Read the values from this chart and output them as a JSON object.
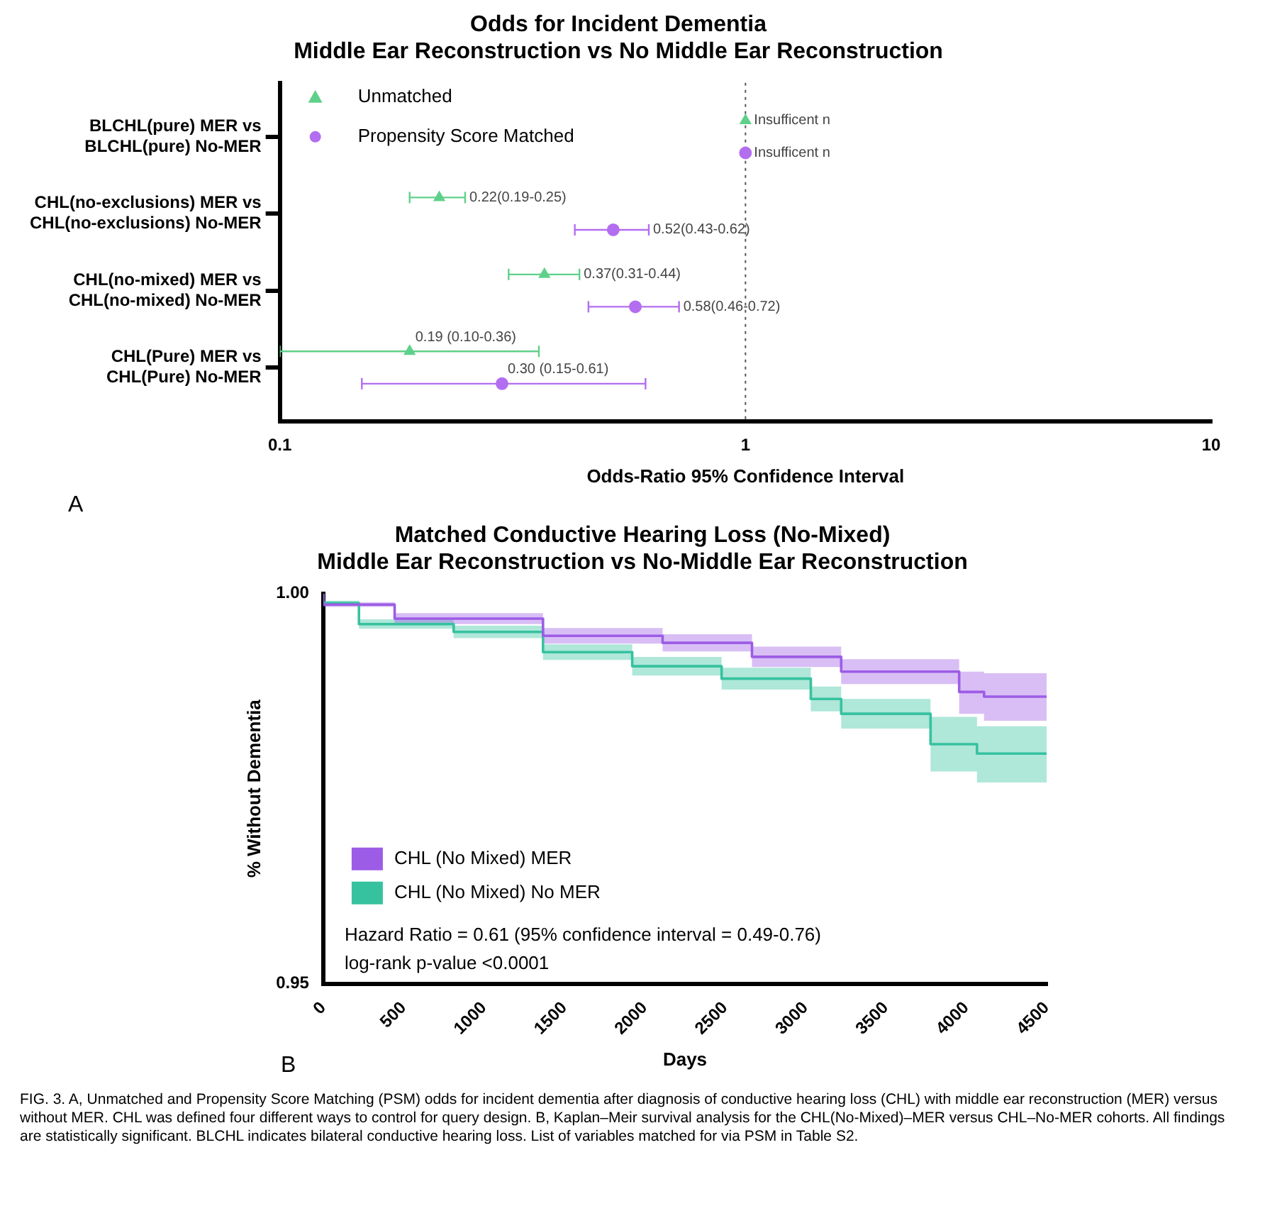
{
  "chart_data": [
    {
      "type": "scatter",
      "orientation": "horizontal",
      "title": "Odds for Incident Dementia",
      "subtitle": "Middle Ear Reconstruction vs No Middle Ear Reconstruction",
      "xlabel": "Odds-Ratio 95% Confidence Interval",
      "categories": [
        "BLCHL(pure) MER vs\nBLCHL(pure) No-MER",
        "CHL(no-exclusions) MER vs\nCHL(no-exclusions) No-MER",
        "CHL(no-mixed) MER vs\nCHL(no-mixed) No-MER",
        "CHL(Pure) MER vs\nCHL(Pure) No-MER"
      ],
      "series": [
        {
          "name": "Unmatched",
          "color": "#5fd08a",
          "marker": "triangle",
          "values": [
            1,
            0.22,
            0.37,
            0.19
          ],
          "errors": [
            null,
            [
              0.19,
              0.25
            ],
            [
              0.31,
              0.44
            ],
            [
              0.1,
              0.36
            ]
          ],
          "value_labels": [
            "Insufficent n",
            "0.22(0.19-0.25)",
            "0.37(0.31-0.44)",
            "0.19 (0.10-0.36)"
          ]
        },
        {
          "name": "Propensity Score Matched",
          "color": "#b36ef0",
          "marker": "circle",
          "values": [
            1,
            0.52,
            0.58,
            0.3
          ],
          "errors": [
            null,
            [
              0.43,
              0.62
            ],
            [
              0.46,
              0.72
            ],
            [
              0.15,
              0.61
            ]
          ],
          "value_labels": [
            "Insufficent n",
            "0.52(0.43-0.62)",
            "0.58(0.46-0.72)",
            "0.30 (0.15-0.61)"
          ]
        }
      ],
      "xlim": [
        0.1,
        10
      ],
      "xticks": [
        0.1,
        1,
        10
      ],
      "log": "x",
      "grid": false,
      "legend": "top left",
      "ref_lines": [
        {
          "axis": "x",
          "value": 1,
          "line_style": "dotted",
          "color": "#555555"
        }
      ],
      "annotations": [
        "A"
      ]
    },
    {
      "type": "step",
      "title": "Matched Conductive Hearing Loss (No-Mixed)",
      "subtitle": "Middle Ear Reconstruction vs No-Middle Ear Reconstruction",
      "xlabel": "Days",
      "ylabel": "% Without Dementia",
      "series": [
        {
          "name": "CHL (No Mixed) MER",
          "color": "#9d5ce6",
          "x": [
            0,
            444,
            1367,
            2111,
            2667,
            3222,
            3956,
            4111,
            4500
          ],
          "values": [
            1,
            0.9986,
            0.9968,
            0.9946,
            0.9937,
            0.9919,
            0.99,
            0.9874,
            0.9868
          ],
          "lower": [
            1,
            0.9983,
            0.9961,
            0.9936,
            0.9926,
            0.9906,
            0.9884,
            0.9846,
            0.9837
          ],
          "upper": [
            1,
            0.9989,
            0.9975,
            0.9956,
            0.9948,
            0.9932,
            0.9916,
            0.99,
            0.9898
          ]
        },
        {
          "name": "CHL (No Mixed) No MER",
          "color": "#36c29f",
          "x": [
            0,
            222,
            811,
            1367,
            1922,
            2478,
            3033,
            3222,
            3778,
            4067,
            4500
          ],
          "values": [
            1,
            0.9988,
            0.9961,
            0.9951,
            0.9925,
            0.9907,
            0.9891,
            0.9865,
            0.9846,
            0.9807,
            0.9795
          ],
          "lower": [
            1,
            0.9985,
            0.9955,
            0.9943,
            0.9915,
            0.9895,
            0.9877,
            0.9849,
            0.9827,
            0.9772,
            0.9758
          ],
          "upper": [
            1,
            0.9991,
            0.9967,
            0.9959,
            0.9935,
            0.9919,
            0.9905,
            0.9881,
            0.9865,
            0.9842,
            0.983
          ]
        }
      ],
      "xlim": [
        0,
        4500
      ],
      "xticks": [
        0,
        500,
        1000,
        1500,
        2000,
        2500,
        3000,
        3500,
        4000,
        4500
      ],
      "ylim": [
        0.95,
        1
      ],
      "yticks": [
        {
          "value": 0.95,
          "label": "0.95"
        },
        {
          "value": 1,
          "label": "1.00"
        }
      ],
      "grid": false,
      "legend": "bottom left",
      "annotations": [
        "B",
        "Hazard Ratio = 0.61 (95% confidence interval = 0.49-0.76)",
        "log-rank p-value <0.0001",
        "FIG. 3. A, Unmatched and Propensity Score Matching (PSM) odds for incident dementia after diagnosis of conductive hearing loss (CHL) with middle ear reconstruction (MER) versus without MER. CHL was defined four different ways to control for query design. B, Kaplan–Meir survival analysis for the CHL(No-Mixed)–MER versus CHL–No-MER cohorts. All findings are statistically significant. BLCHL indicates bilateral conductive hearing loss. List of variables matched for via PSM in Table S2."
      ]
    }
  ]
}
